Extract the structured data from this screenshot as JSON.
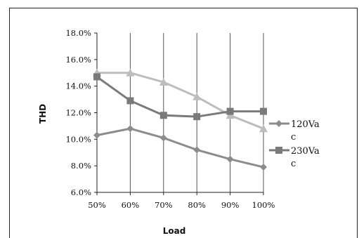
{
  "chart_data": {
    "type": "line",
    "categories": [
      "50%",
      "60%",
      "70%",
      "80%",
      "90%",
      "100%"
    ],
    "xlabel": "Load",
    "ylabel": "THD",
    "ylim": [
      0.06,
      0.18
    ],
    "yticks": [
      "18.0%",
      "16.0%",
      "14.0%",
      "12.0%",
      "10.0%",
      "8.0%",
      "6.0%"
    ],
    "grid": "vertical",
    "legend_position": "right",
    "series": [
      {
        "name": "120Vac",
        "legend_lines": [
          "120Va",
          "c"
        ],
        "marker": "diamond",
        "color": "#8c8c8c",
        "values": [
          0.103,
          0.108,
          0.101,
          0.092,
          0.085,
          0.079
        ]
      },
      {
        "name": "230Vac",
        "legend_lines": [
          "230Va",
          "c"
        ],
        "marker": "square",
        "color": "#7a7a7a",
        "values": [
          0.147,
          0.129,
          0.118,
          0.117,
          0.121,
          0.121
        ]
      },
      {
        "name": "",
        "legend_lines": [],
        "marker": "triangle",
        "color": "#bdbdbd",
        "values": [
          0.15,
          0.15,
          0.143,
          0.132,
          0.118,
          0.108
        ]
      }
    ]
  }
}
